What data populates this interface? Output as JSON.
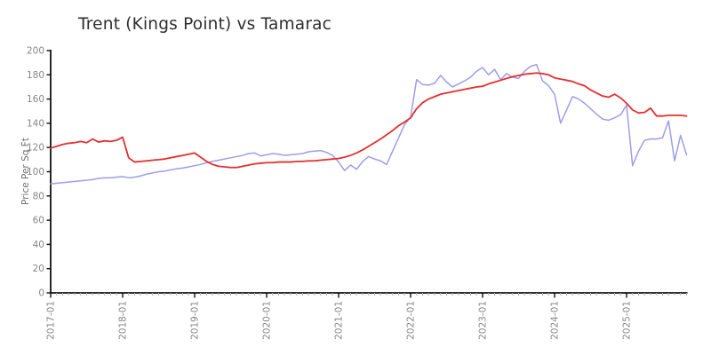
{
  "title": "Trent (Kings Point) vs Tamarac",
  "chart_data": {
    "type": "line",
    "title": "Trent (Kings Point) vs Tamarac",
    "xlabel": "",
    "ylabel": "Price Per Sq Ft",
    "ylim": [
      0,
      200
    ],
    "y_ticks": [
      0,
      20,
      40,
      60,
      80,
      100,
      120,
      140,
      160,
      180,
      200
    ],
    "x_major_tick_labels": [
      "2017-01",
      "2018-01",
      "2019-01",
      "2020-01",
      "2021-01",
      "2022-01",
      "2023-01",
      "2024-01",
      "2025-01"
    ],
    "x_interval": "month",
    "grid": false,
    "legend": "none",
    "x": [
      "2017-01",
      "2017-02",
      "2017-03",
      "2017-04",
      "2017-05",
      "2017-06",
      "2017-07",
      "2017-08",
      "2017-09",
      "2017-10",
      "2017-11",
      "2017-12",
      "2018-01",
      "2018-02",
      "2018-03",
      "2018-04",
      "2018-05",
      "2018-06",
      "2018-07",
      "2018-08",
      "2018-09",
      "2018-10",
      "2018-11",
      "2018-12",
      "2019-01",
      "2019-02",
      "2019-03",
      "2019-04",
      "2019-05",
      "2019-06",
      "2019-07",
      "2019-08",
      "2019-09",
      "2019-10",
      "2019-11",
      "2019-12",
      "2020-01",
      "2020-02",
      "2020-03",
      "2020-04",
      "2020-05",
      "2020-06",
      "2020-07",
      "2020-08",
      "2020-09",
      "2020-10",
      "2020-11",
      "2020-12",
      "2021-01",
      "2021-02",
      "2021-03",
      "2021-04",
      "2021-05",
      "2021-06",
      "2021-07",
      "2021-08",
      "2021-09",
      "2021-10",
      "2021-11",
      "2021-12",
      "2022-01",
      "2022-02",
      "2022-03",
      "2022-04",
      "2022-05",
      "2022-06",
      "2022-07",
      "2022-08",
      "2022-09",
      "2022-10",
      "2022-11",
      "2022-12",
      "2023-01",
      "2023-02",
      "2023-03",
      "2023-04",
      "2023-05",
      "2023-06",
      "2023-07",
      "2023-08",
      "2023-09",
      "2023-10",
      "2023-11",
      "2023-12",
      "2024-01",
      "2024-02",
      "2024-03",
      "2024-04",
      "2024-05",
      "2024-06",
      "2024-07",
      "2024-08",
      "2024-09",
      "2024-10",
      "2024-11",
      "2024-12",
      "2025-01",
      "2025-02",
      "2025-03",
      "2025-04",
      "2025-05",
      "2025-06",
      "2025-07",
      "2025-08",
      "2025-09",
      "2025-10",
      "2025-11"
    ],
    "series": [
      {
        "name": "Trent (Kings Point)",
        "color": "#9d9dea",
        "values": [
          90,
          90.5,
          91,
          91.5,
          92,
          92.5,
          93,
          93.5,
          94.5,
          95,
          95,
          95.5,
          96,
          95,
          95.5,
          96.5,
          98,
          99,
          100,
          100.5,
          101.5,
          102.5,
          103,
          104,
          105,
          106,
          107.5,
          108.5,
          109.5,
          110.5,
          111.5,
          112.5,
          113.5,
          115,
          115.5,
          113,
          114,
          115,
          114.5,
          113.5,
          114,
          114.5,
          115,
          116.5,
          117,
          117.5,
          116,
          113.5,
          108,
          101,
          105.5,
          102,
          108.5,
          112.5,
          110.5,
          109,
          106,
          117,
          128,
          139,
          145,
          176,
          172,
          171.5,
          173,
          179.5,
          174,
          170,
          172.5,
          175,
          178,
          183,
          186,
          180,
          184.5,
          176,
          181,
          178,
          177,
          183,
          187,
          188.5,
          175,
          171,
          164,
          140,
          151,
          162,
          160,
          156.5,
          152,
          147.5,
          143.5,
          142.5,
          144.5,
          147,
          155,
          105,
          117,
          126,
          127,
          127,
          128,
          142,
          109,
          130,
          114
        ]
      },
      {
        "name": "Tamarac",
        "color": "#e62e2e",
        "values": [
          119.5,
          121,
          122.5,
          123.5,
          124,
          125,
          124,
          127,
          124.5,
          125.5,
          125,
          126,
          128.5,
          111.5,
          108,
          108.5,
          109,
          109.5,
          110,
          110.5,
          111.5,
          112.5,
          113.5,
          114.5,
          115.5,
          112,
          108.5,
          106,
          104.5,
          104,
          103.5,
          103.5,
          104.5,
          105.5,
          106.5,
          107,
          107.5,
          107.5,
          108,
          108,
          108,
          108.5,
          108.5,
          109,
          109,
          109.5,
          110,
          110.5,
          111,
          112,
          113.5,
          115.5,
          118,
          121,
          124,
          127,
          130.5,
          134,
          138,
          141,
          144.5,
          152,
          157,
          160,
          162,
          164,
          165,
          166,
          167,
          168,
          169,
          170,
          170.5,
          172.5,
          174,
          175.5,
          177,
          178.5,
          179.5,
          180.5,
          181,
          181.5,
          181,
          180,
          177.5,
          176.5,
          175.5,
          174.5,
          172.5,
          171,
          167.5,
          165,
          162.5,
          161.5,
          164,
          161,
          156.5,
          151,
          148.5,
          149,
          152.5,
          146,
          146,
          146.5,
          146.5,
          146.5,
          146
        ]
      }
    ],
    "style": {
      "spine_color": "#111111",
      "tick_label_color": "#878787",
      "minor_tick_color": "#b5b5b5",
      "background": "#ffffff"
    }
  }
}
